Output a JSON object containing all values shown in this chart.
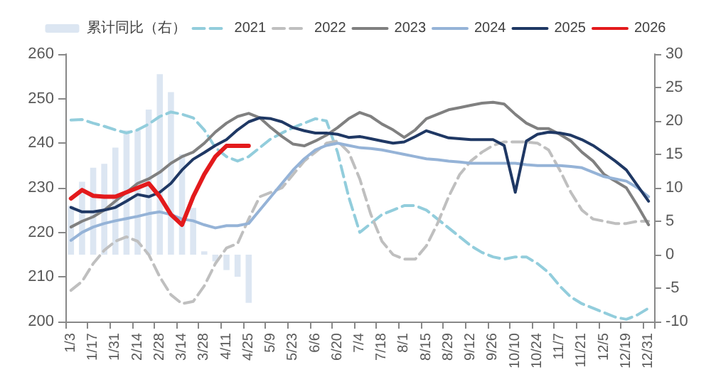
{
  "chart_data": {
    "type": "line",
    "categories": [
      "1/3",
      null,
      "1/17",
      null,
      "1/31",
      null,
      "2/14",
      null,
      "2/28",
      null,
      "3/14",
      null,
      "3/28",
      null,
      "4/11",
      null,
      "4/25",
      null,
      "5/9",
      null,
      "5/23",
      null,
      "6/6",
      null,
      "6/20",
      null,
      "7/4",
      null,
      "7/18",
      null,
      "8/1",
      null,
      "8/15",
      null,
      "8/29",
      null,
      "9/12",
      null,
      "9/26",
      null,
      "10/10",
      null,
      "10/24",
      null,
      "11/7",
      null,
      "11/21",
      null,
      "12/5",
      null,
      "12/19",
      null,
      "12/31"
    ],
    "series": [
      {
        "name": "累计同比（右）",
        "type": "bar",
        "axis": "y2",
        "color": "#dce6f2",
        "values": [
          7.3,
          10.9,
          13,
          13.6,
          16,
          18.6,
          18.6,
          21.7,
          27,
          24.3,
          15,
          7,
          0.5,
          -1,
          -2.3,
          -3.3,
          -7.2,
          null,
          null,
          null,
          null,
          null,
          null,
          null,
          null,
          null,
          null,
          null,
          null,
          null,
          null,
          null,
          null,
          null,
          null,
          null,
          null,
          null,
          null,
          null,
          null,
          null,
          null,
          null,
          null,
          null,
          null,
          null,
          null,
          null,
          null,
          null,
          null
        ]
      },
      {
        "name": "2021",
        "color": "#92cddc",
        "line_style": "dashed",
        "values": [
          245.2,
          245.3,
          244.5,
          243.8,
          243,
          242.3,
          243,
          244.3,
          246,
          247,
          246.5,
          245.7,
          243,
          239,
          237,
          236,
          237,
          239,
          241,
          242.3,
          243.5,
          244.5,
          245.5,
          245,
          238,
          228,
          220,
          222,
          224,
          225,
          226,
          226,
          225,
          223,
          221,
          219,
          217,
          215.5,
          214.5,
          214,
          214.5,
          214.5,
          213,
          211,
          208,
          205.5,
          204,
          203,
          202,
          201,
          200.5,
          201.5,
          203
        ]
      },
      {
        "name": "2022",
        "color": "#bfbfbf",
        "line_style": "dashed",
        "values": [
          207,
          209,
          213,
          216,
          218,
          219,
          218,
          215,
          210,
          206,
          204,
          204.5,
          208,
          213,
          216.5,
          217.5,
          223,
          228,
          229,
          230,
          233,
          236,
          238,
          240,
          240.5,
          238,
          232,
          224,
          218,
          215,
          214,
          214,
          217,
          222,
          228,
          233,
          236,
          238,
          239.5,
          240.3,
          240.3,
          240.3,
          240,
          238.5,
          234,
          229,
          225,
          223,
          222.5,
          222,
          222,
          222.5,
          222.5
        ]
      },
      {
        "name": "2023",
        "color": "#808080",
        "values": [
          221.2,
          222.5,
          223.5,
          225,
          227,
          229,
          231,
          232,
          233.5,
          235.5,
          237,
          238,
          240,
          242.5,
          244.5,
          246,
          246.7,
          245.7,
          243.5,
          241.5,
          239.8,
          239.4,
          240.5,
          241.8,
          243.5,
          245.5,
          246.9,
          246,
          244.3,
          243,
          241.3,
          243,
          245.5,
          246.5,
          247.5,
          248,
          248.5,
          249,
          249.2,
          248.8,
          246.5,
          244.5,
          243.3,
          243.3,
          242,
          240.5,
          238,
          236,
          233,
          231.5,
          230,
          226,
          221.7
        ]
      },
      {
        "name": "2024",
        "color": "#95b3d7",
        "values": [
          218.2,
          220,
          221.2,
          222,
          222.6,
          223.1,
          223.6,
          224.2,
          224.6,
          224,
          223,
          222.6,
          221.7,
          221,
          221.5,
          221.5,
          222,
          225,
          228,
          231,
          234,
          236.5,
          238.5,
          239.5,
          240,
          239.5,
          239,
          238.8,
          238.5,
          238,
          237.5,
          237,
          236.5,
          236.3,
          236,
          235.8,
          235.5,
          235.5,
          235.5,
          235.5,
          235.5,
          235.2,
          235,
          235,
          235,
          234.8,
          234.5,
          233.5,
          232.5,
          232,
          231.5,
          230,
          228
        ]
      },
      {
        "name": "2025",
        "color": "#1f3864",
        "values": [
          225.6,
          224.6,
          224.6,
          225,
          225.6,
          227,
          228.5,
          228,
          229,
          231,
          234,
          236.4,
          237.9,
          239.5,
          240.8,
          243,
          244.8,
          245.7,
          245.5,
          244.8,
          243.5,
          242.8,
          242.3,
          242.3,
          242,
          241.3,
          241.5,
          241,
          240.5,
          240,
          240.3,
          241.5,
          242.8,
          242,
          241.2,
          241,
          240.8,
          240.8,
          240.8,
          239.5,
          229,
          240.5,
          242,
          242.5,
          242.3,
          241.8,
          240.8,
          239.5,
          237.8,
          236,
          234,
          230.5,
          227
        ]
      },
      {
        "name": "2026",
        "color": "#e31a1c",
        "values": [
          227.6,
          229.5,
          228.2,
          228,
          228,
          229,
          230,
          231,
          228,
          224,
          221.7,
          228,
          233,
          237,
          239.4,
          239.4,
          239.4,
          null,
          null,
          null,
          null,
          null,
          null,
          null,
          null,
          null,
          null,
          null,
          null,
          null,
          null,
          null,
          null,
          null,
          null,
          null,
          null,
          null,
          null,
          null,
          null,
          null,
          null,
          null,
          null,
          null,
          null,
          null,
          null,
          null,
          null,
          null,
          null
        ]
      }
    ],
    "ylim": [
      200,
      260
    ],
    "yticks": [
      200,
      210,
      220,
      230,
      240,
      250,
      260
    ],
    "y2lim": [
      -10,
      30
    ],
    "y2ticks": [
      -10,
      -5,
      0,
      5,
      10,
      15,
      20,
      25,
      30
    ],
    "legend": "top",
    "grid": false,
    "marker": "none"
  }
}
